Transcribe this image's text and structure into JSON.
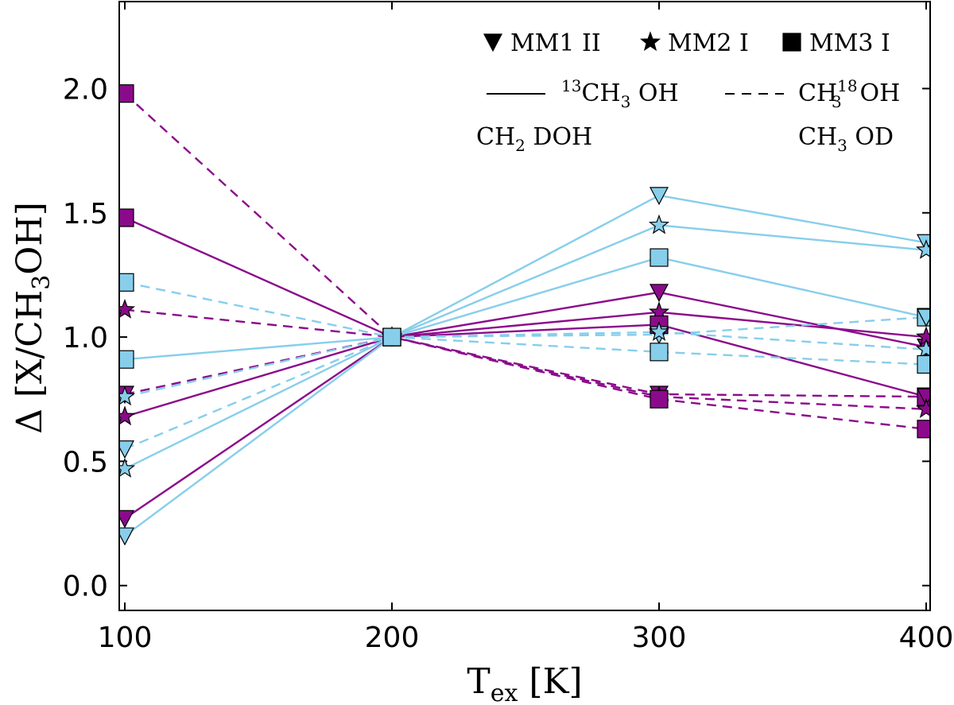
{
  "chart_data": {
    "type": "line",
    "x": [
      100,
      200,
      300,
      400
    ],
    "xlim": [
      100,
      400
    ],
    "ylim": [
      -0.1,
      2.35
    ],
    "xticks": [
      "100",
      "200",
      "300",
      "400"
    ],
    "yticks": [
      "0.0",
      "0.5",
      "1.0",
      "1.5",
      "2.0"
    ],
    "ytick_values": [
      0.0,
      0.5,
      1.0,
      1.5,
      2.0
    ],
    "xlabel": {
      "main": "T",
      "sub": "ex",
      "unit": " [K]"
    },
    "ylabel": {
      "p1": "Δ [X/CH",
      "sub": "3",
      "p2": "OH]"
    },
    "colors": {
      "CH2DOH": "#8b0a8b",
      "CH3OD": "#87ceeb"
    },
    "legend": {
      "sources": [
        {
          "marker": "triangle-down",
          "label": "MM1 II"
        },
        {
          "marker": "star",
          "label": "MM2 I"
        },
        {
          "marker": "square",
          "label": "MM3 I"
        }
      ],
      "lines": [
        {
          "dash": "solid",
          "p1": "",
          "sup": "13",
          "p2": "CH",
          "sub": "3",
          "p3": " OH"
        },
        {
          "dash": "dashed",
          "p1": "CH",
          "sup": "18",
          "sub": "3",
          "p3": " OH"
        }
      ],
      "species": [
        {
          "key": "CH2DOH",
          "p1": "CH",
          "sub": "2",
          "p2": " DOH"
        },
        {
          "key": "CH3OD",
          "p1": "CH",
          "sub": "3",
          "p2": " OD"
        }
      ]
    },
    "series": [
      {
        "name": "CH2DOH 13CH3OH MM1 II",
        "species": "CH2DOH",
        "dash": "solid",
        "marker": "triangle-down",
        "values": [
          0.27,
          1.0,
          1.18,
          0.96
        ]
      },
      {
        "name": "CH2DOH 13CH3OH MM2 I",
        "species": "CH2DOH",
        "dash": "solid",
        "marker": "star",
        "values": [
          0.68,
          1.0,
          1.1,
          1.0
        ]
      },
      {
        "name": "CH2DOH 13CH3OH MM3 I",
        "species": "CH2DOH",
        "dash": "solid",
        "marker": "square",
        "values": [
          1.48,
          1.0,
          1.05,
          0.76
        ]
      },
      {
        "name": "CH2DOH CH318OH MM1 II",
        "species": "CH2DOH",
        "dash": "dashed",
        "marker": "triangle-down",
        "values": [
          0.77,
          1.0,
          0.77,
          0.76
        ]
      },
      {
        "name": "CH2DOH CH318OH MM2 I",
        "species": "CH2DOH",
        "dash": "dashed",
        "marker": "star",
        "values": [
          1.11,
          1.0,
          0.76,
          0.71
        ]
      },
      {
        "name": "CH2DOH CH318OH MM3 I",
        "species": "CH2DOH",
        "dash": "dashed",
        "marker": "square",
        "values": [
          1.98,
          1.0,
          0.75,
          0.63
        ]
      },
      {
        "name": "CH3OD 13CH3OH MM1 II",
        "species": "CH3OD",
        "dash": "solid",
        "marker": "triangle-down",
        "values": [
          0.2,
          1.0,
          1.57,
          1.38
        ]
      },
      {
        "name": "CH3OD 13CH3OH MM2 I",
        "species": "CH3OD",
        "dash": "solid",
        "marker": "star",
        "values": [
          0.47,
          1.0,
          1.45,
          1.35
        ]
      },
      {
        "name": "CH3OD 13CH3OH MM3 I",
        "species": "CH3OD",
        "dash": "solid",
        "marker": "square",
        "values": [
          0.91,
          1.0,
          1.32,
          1.08
        ]
      },
      {
        "name": "CH3OD CH318OH MM1 II",
        "species": "CH3OD",
        "dash": "dashed",
        "marker": "triangle-down",
        "values": [
          0.55,
          1.0,
          1.01,
          1.08
        ]
      },
      {
        "name": "CH3OD CH318OH MM2 I",
        "species": "CH3OD",
        "dash": "dashed",
        "marker": "star",
        "values": [
          0.76,
          1.0,
          1.02,
          0.95
        ]
      },
      {
        "name": "CH3OD CH318OH MM3 I",
        "species": "CH3OD",
        "dash": "dashed",
        "marker": "square",
        "values": [
          1.22,
          1.0,
          0.94,
          0.89
        ]
      }
    ]
  }
}
